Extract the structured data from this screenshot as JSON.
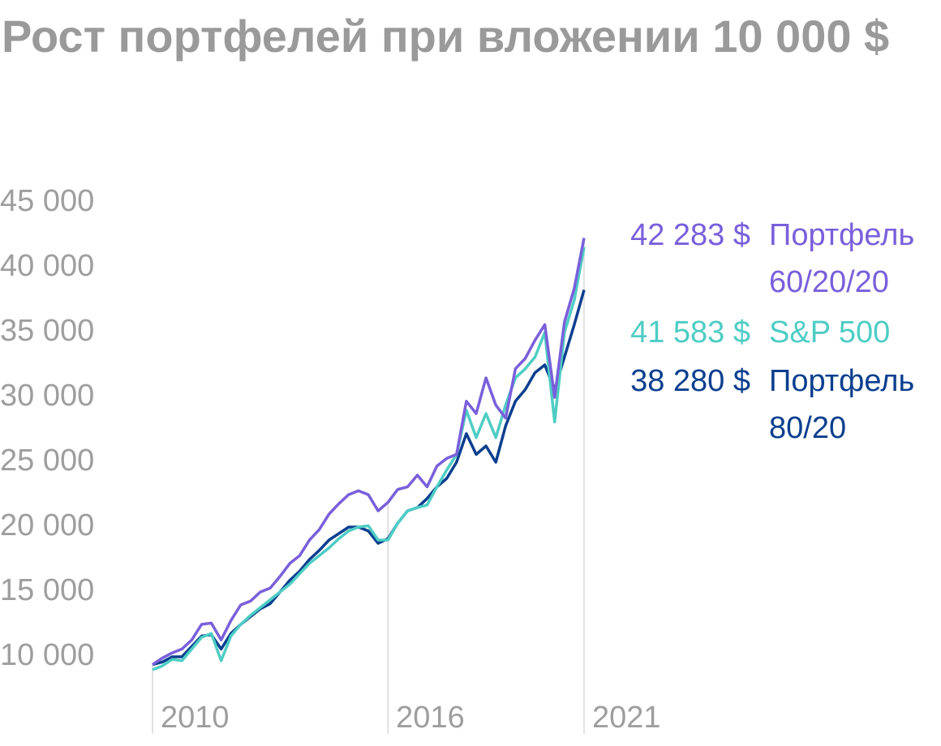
{
  "chart_data": {
    "type": "line",
    "title": "Рост портфелей при вложении 10 000 $",
    "categories": [
      "2010",
      null,
      null,
      null,
      null,
      null,
      null,
      null,
      null,
      null,
      null,
      null,
      null,
      null,
      null,
      null,
      null,
      null,
      null,
      null,
      null,
      null,
      null,
      null,
      "2016",
      null,
      null,
      null,
      null,
      null,
      null,
      null,
      null,
      null,
      null,
      null,
      null,
      null,
      null,
      null,
      null,
      null,
      null,
      null,
      "2021"
    ],
    "ylim": [
      5000,
      45000
    ],
    "yticks": [
      {
        "value": 10000,
        "label": "10 000"
      },
      {
        "value": 15000,
        "label": "15 000"
      },
      {
        "value": 20000,
        "label": "20 000"
      },
      {
        "value": 25000,
        "label": "25 000"
      },
      {
        "value": 30000,
        "label": "30 000"
      },
      {
        "value": 35000,
        "label": "35 000"
      },
      {
        "value": 40000,
        "label": "40 000"
      },
      {
        "value": 45000,
        "label": "45 000"
      }
    ],
    "grid": false,
    "series": [
      {
        "name": "Портфель 60/20/20",
        "color": "#7a5fdb",
        "values": [
          9400,
          9900,
          10300,
          10600,
          11300,
          12500,
          12600,
          11300,
          12800,
          14000,
          14300,
          15000,
          15300,
          16200,
          17200,
          17800,
          19000,
          19800,
          21000,
          21800,
          22500,
          22800,
          22500,
          21250,
          21900,
          22900,
          23100,
          24000,
          23100,
          24700,
          25300,
          25600,
          29700,
          28750,
          31500,
          29400,
          28400,
          32200,
          33000,
          34400,
          35600,
          30000,
          35800,
          38400,
          42283
        ],
        "value_labels": [
          null,
          null,
          null,
          null,
          null,
          null,
          null,
          null,
          null,
          null,
          null,
          null,
          null,
          null,
          null,
          null,
          null,
          null,
          null,
          null,
          null,
          null,
          null,
          null,
          null,
          null,
          null,
          null,
          null,
          null,
          null,
          null,
          null,
          null,
          null,
          null,
          null,
          null,
          null,
          null,
          null,
          null,
          null,
          null,
          "42 283 $"
        ]
      },
      {
        "name": "S&P 500",
        "color": "#4ecdc4",
        "values": [
          9000,
          9300,
          9800,
          9700,
          10600,
          11500,
          11800,
          9700,
          11600,
          12500,
          13200,
          13800,
          14400,
          15000,
          15600,
          16400,
          17200,
          17800,
          18400,
          19100,
          19700,
          20000,
          20100,
          19000,
          19000,
          20300,
          21250,
          21500,
          21700,
          23100,
          24400,
          25600,
          29000,
          26900,
          28750,
          26900,
          29400,
          31500,
          32200,
          33100,
          35000,
          28100,
          35000,
          37500,
          41583
        ],
        "value_labels": [
          null,
          null,
          null,
          null,
          null,
          null,
          null,
          null,
          null,
          null,
          null,
          null,
          null,
          null,
          null,
          null,
          null,
          null,
          null,
          null,
          null,
          null,
          null,
          null,
          null,
          null,
          null,
          null,
          null,
          null,
          null,
          null,
          null,
          null,
          null,
          null,
          null,
          null,
          null,
          null,
          null,
          null,
          null,
          null,
          "41 583 $"
        ]
      },
      {
        "name": "Портфель 80/20",
        "color": "#0b3f8f",
        "values": [
          9400,
          9600,
          10000,
          10000,
          10800,
          11600,
          11700,
          10600,
          11800,
          12500,
          13100,
          13700,
          14100,
          15000,
          15900,
          16600,
          17500,
          18200,
          19000,
          19500,
          20000,
          20000,
          19700,
          18750,
          19100,
          20300,
          21250,
          21500,
          22200,
          23100,
          23750,
          25000,
          27200,
          25600,
          26250,
          25000,
          27800,
          29700,
          30600,
          31900,
          32500,
          30600,
          33100,
          35600,
          38280
        ],
        "value_labels": [
          null,
          null,
          null,
          null,
          null,
          null,
          null,
          null,
          null,
          null,
          null,
          null,
          null,
          null,
          null,
          null,
          null,
          null,
          null,
          null,
          null,
          null,
          null,
          null,
          null,
          null,
          null,
          null,
          null,
          null,
          null,
          null,
          null,
          null,
          null,
          null,
          null,
          null,
          null,
          null,
          null,
          null,
          null,
          null,
          "38 280 $"
        ]
      }
    ]
  }
}
